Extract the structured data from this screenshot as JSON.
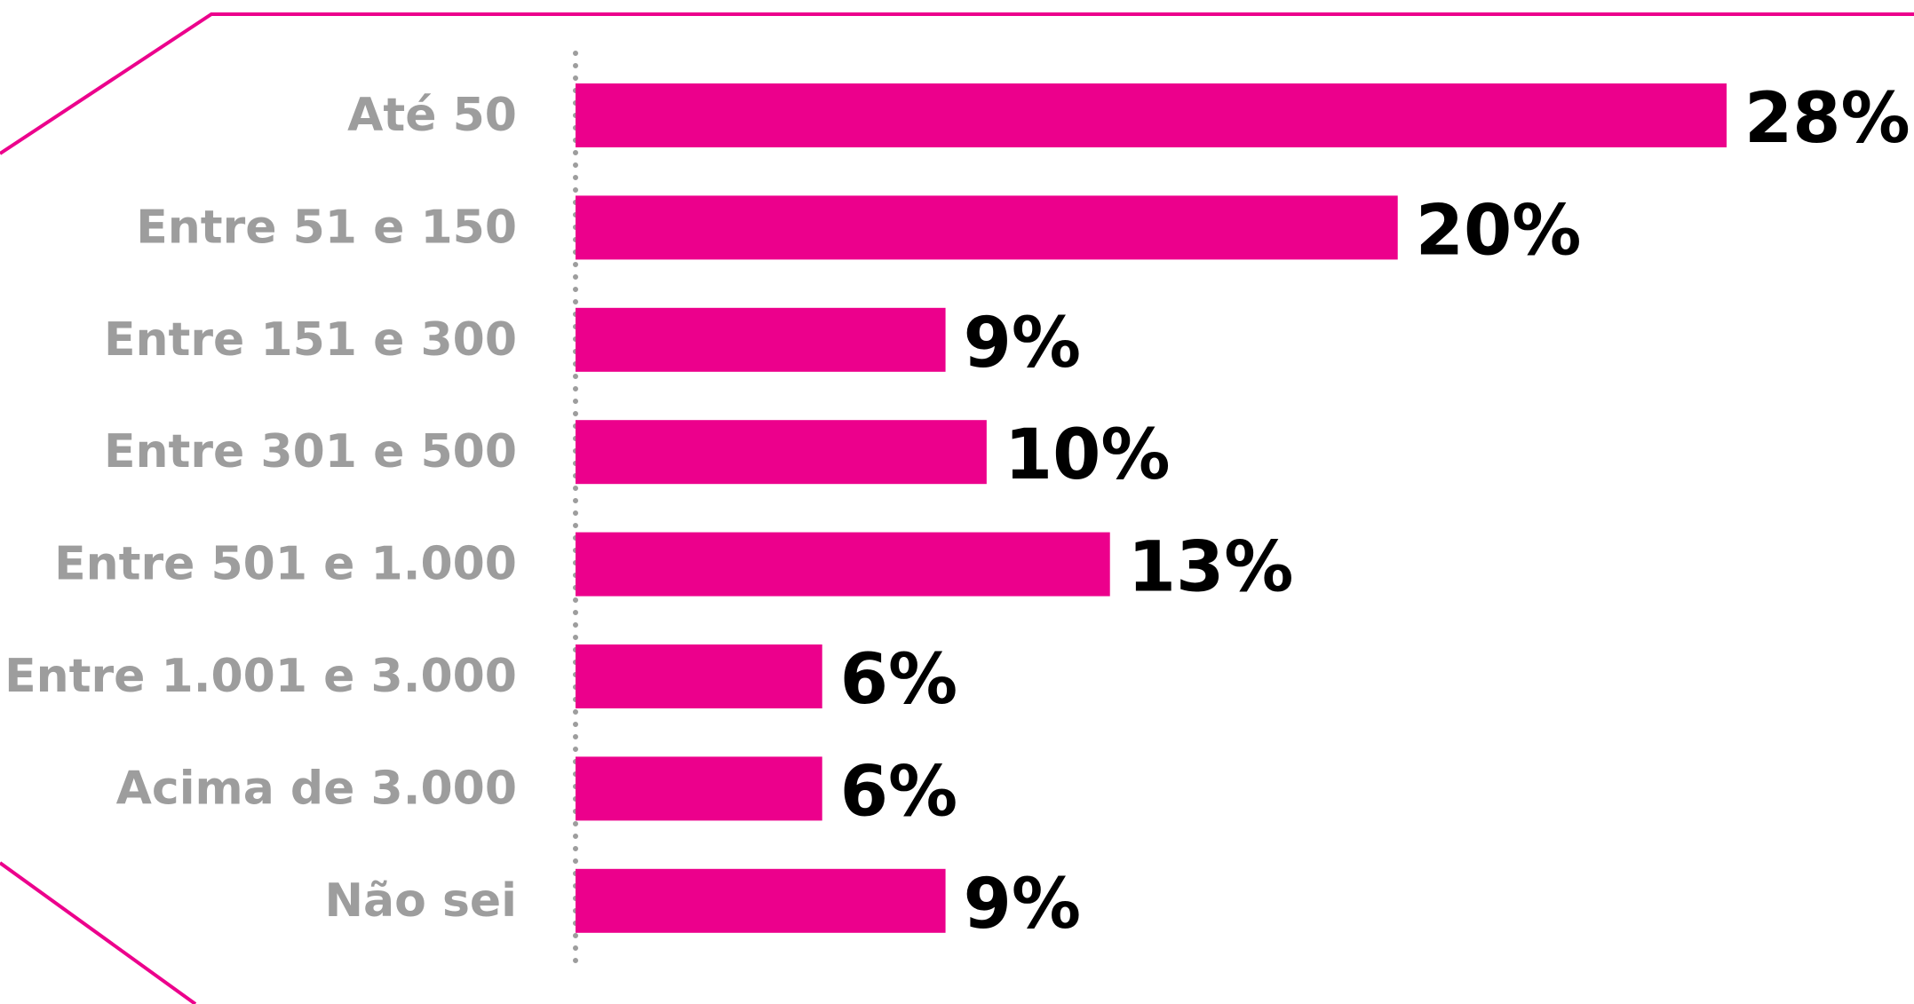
{
  "chart_data": {
    "type": "bar",
    "orientation": "horizontal",
    "categories": [
      "Até 50",
      "Entre 51 e 150",
      "Entre 151 e 300",
      "Entre 301 e 500",
      "Entre 501 e 1.000",
      "Entre 1.001 e 3.000",
      "Acima de 3.000",
      "Não sei"
    ],
    "values": [
      28,
      20,
      9,
      10,
      13,
      6,
      6,
      9
    ],
    "value_labels": [
      "28%",
      "20%",
      "9%",
      "10%",
      "13%",
      "6%",
      "6%",
      "9%"
    ],
    "unit": "%",
    "xlim": [
      0,
      28
    ],
    "grid": false,
    "legend": "none"
  },
  "colors": {
    "bar": "#ec008c",
    "frame": "#ec008c",
    "category_text": "#9d9d9d",
    "value_text": "#000000",
    "axis_dots": "#9d9d9d"
  }
}
